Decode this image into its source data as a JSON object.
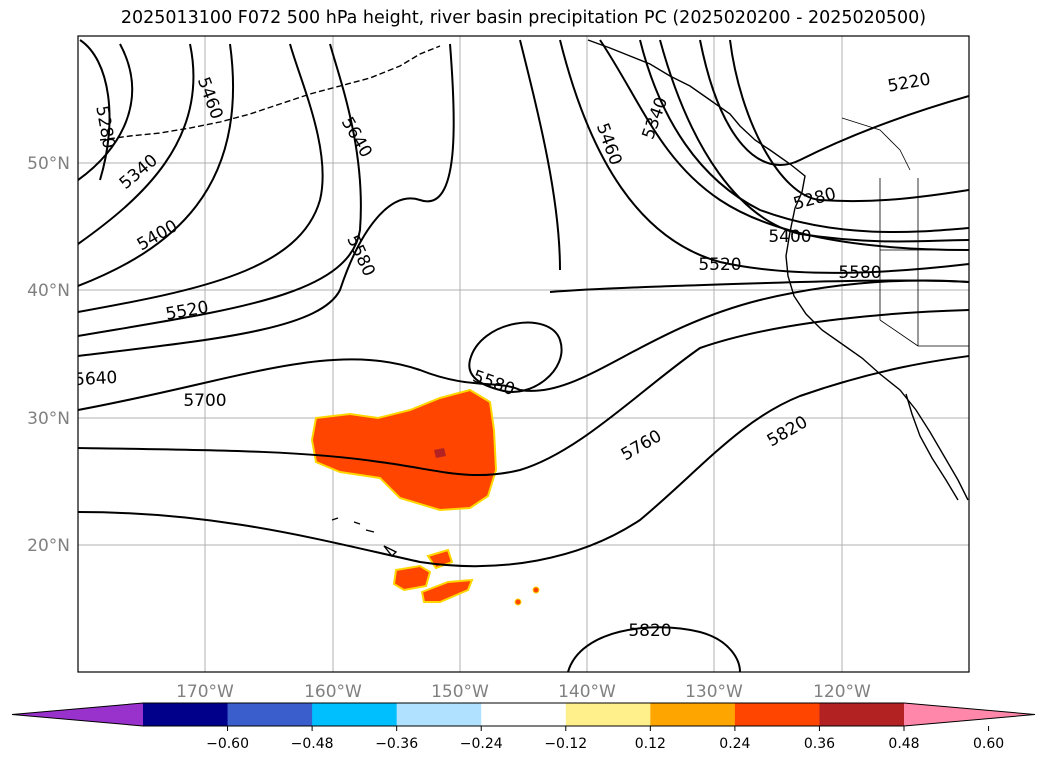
{
  "title": "2025013100 F072 500 hPa height, river basin precipitation PC (2025020200 - 2025020500)",
  "lat_labels": [
    "50°N",
    "40°N",
    "30°N",
    "20°N"
  ],
  "lon_labels": [
    "170°W",
    "160°W",
    "150°W",
    "140°W",
    "130°W",
    "120°W"
  ],
  "contour_labels": [
    "5280",
    "5460",
    "5640",
    "5340",
    "5400",
    "5580",
    "5520",
    "5640",
    "5700",
    "5580",
    "5760",
    "5820",
    "5820",
    "5460",
    "5340",
    "5220",
    "5280",
    "5400",
    "5520",
    "5580"
  ],
  "colorbar": {
    "ticks": [
      "−0.60",
      "−0.48",
      "−0.36",
      "−0.24",
      "−0.12",
      "0.12",
      "0.24",
      "0.36",
      "0.48",
      "0.60"
    ],
    "colors": [
      "#9932cc",
      "#00008b",
      "#3a5fcd",
      "#00bfff",
      "#b0e2ff",
      "#ffffff",
      "#fff08c",
      "#ffa500",
      "#ff4500",
      "#b22222",
      "#ff88aa"
    ]
  }
}
